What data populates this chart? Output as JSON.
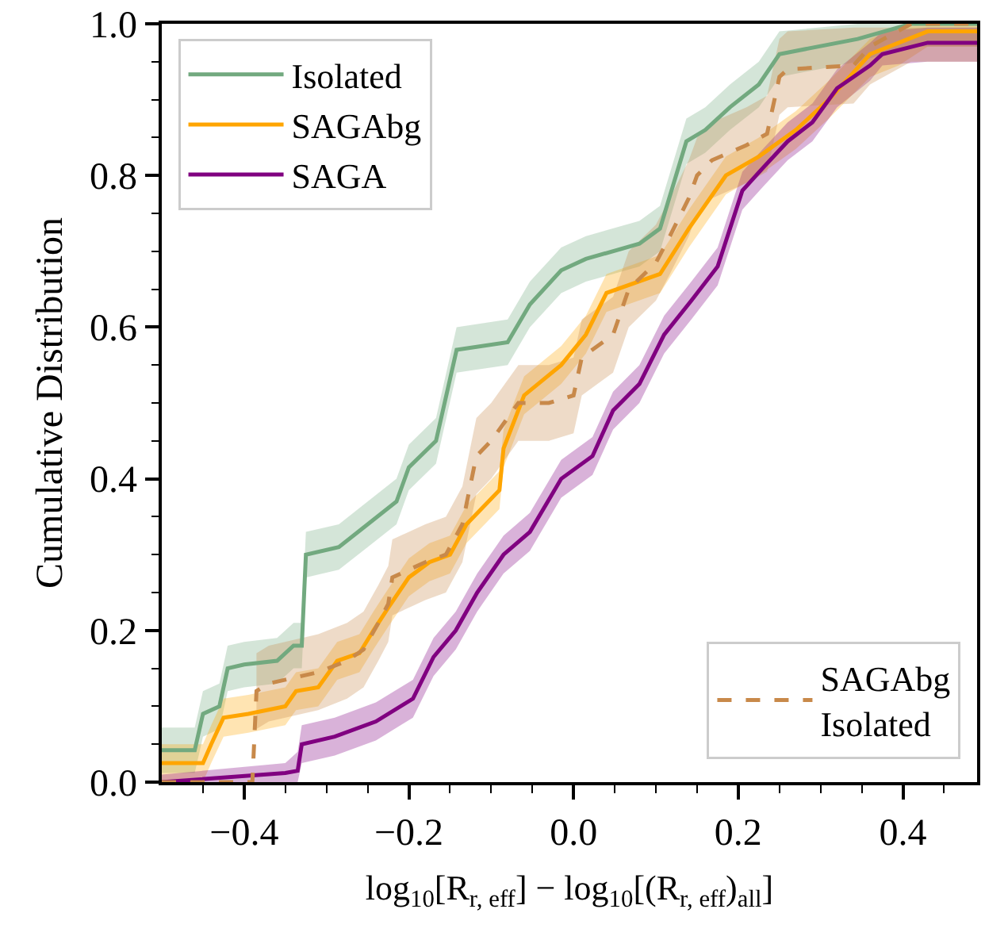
{
  "chart_data": {
    "type": "line",
    "xlabel": "log$_{10}$[R$_{r, eff}$] − log$_{10}$[(R$_{r, eff}$)$_{all}$]",
    "ylabel": "Cumulative Distribution",
    "xlim": [
      -0.5,
      0.49
    ],
    "ylim": [
      0,
      1
    ],
    "xticks": [
      {
        "value": -0.45,
        "label": null
      },
      {
        "value": -0.4,
        "label": "−0.4"
      },
      {
        "value": -0.35,
        "label": null
      },
      {
        "value": -0.3,
        "label": null
      },
      {
        "value": -0.25,
        "label": null
      },
      {
        "value": -0.2,
        "label": "−0.2"
      },
      {
        "value": -0.15,
        "label": null
      },
      {
        "value": -0.1,
        "label": null
      },
      {
        "value": -0.05,
        "label": null
      },
      {
        "value": 0,
        "label": "0.0"
      },
      {
        "value": 0.05,
        "label": null
      },
      {
        "value": 0.1,
        "label": null
      },
      {
        "value": 0.15,
        "label": null
      },
      {
        "value": 0.2,
        "label": "0.2"
      },
      {
        "value": 0.25,
        "label": null
      },
      {
        "value": 0.3,
        "label": null
      },
      {
        "value": 0.35,
        "label": null
      },
      {
        "value": 0.4,
        "label": "0.4"
      },
      {
        "value": 0.45,
        "label": null
      }
    ],
    "yticks": [
      {
        "value": 0,
        "label": "0.0"
      },
      {
        "value": 0.05,
        "label": null
      },
      {
        "value": 0.1,
        "label": null
      },
      {
        "value": 0.15,
        "label": null
      },
      {
        "value": 0.2,
        "label": "0.2"
      },
      {
        "value": 0.25,
        "label": null
      },
      {
        "value": 0.3,
        "label": null
      },
      {
        "value": 0.35,
        "label": null
      },
      {
        "value": 0.4,
        "label": "0.4"
      },
      {
        "value": 0.45,
        "label": null
      },
      {
        "value": 0.5,
        "label": null
      },
      {
        "value": 0.55,
        "label": null
      },
      {
        "value": 0.6,
        "label": "0.6"
      },
      {
        "value": 0.65,
        "label": null
      },
      {
        "value": 0.7,
        "label": null
      },
      {
        "value": 0.75,
        "label": null
      },
      {
        "value": 0.8,
        "label": "0.8"
      },
      {
        "value": 0.85,
        "label": null
      },
      {
        "value": 0.9,
        "label": null
      },
      {
        "value": 0.95,
        "label": null
      },
      {
        "value": 1,
        "label": "1.0"
      }
    ],
    "legend": [
      "top left",
      "bottom right"
    ],
    "marker": "none",
    "series": [
      {
        "name": "Isolated",
        "color": "#72a97f",
        "line_style": "solid",
        "x": [
          -0.5,
          -0.46,
          -0.45,
          -0.43,
          -0.42,
          -0.4,
          -0.36,
          -0.34,
          -0.33,
          -0.325,
          -0.285,
          -0.25,
          -0.215,
          -0.2,
          -0.167,
          -0.142,
          -0.08,
          -0.053,
          -0.015,
          0.015,
          0.08,
          0.105,
          0.137,
          0.16,
          0.19,
          0.225,
          0.25,
          0.345,
          0.41,
          0.49
        ],
        "values": [
          0.042,
          0.042,
          0.09,
          0.1,
          0.15,
          0.155,
          0.16,
          0.18,
          0.18,
          0.3,
          0.31,
          0.34,
          0.37,
          0.415,
          0.45,
          0.57,
          0.58,
          0.63,
          0.675,
          0.69,
          0.71,
          0.73,
          0.845,
          0.86,
          0.89,
          0.92,
          0.96,
          0.98,
          1.0,
          1.0
        ],
        "lower": [
          0.012,
          0.012,
          0.06,
          0.07,
          0.12,
          0.125,
          0.13,
          0.15,
          0.15,
          0.27,
          0.28,
          0.31,
          0.34,
          0.385,
          0.42,
          0.54,
          0.55,
          0.6,
          0.645,
          0.66,
          0.68,
          0.7,
          0.815,
          0.83,
          0.86,
          0.89,
          0.93,
          0.95,
          0.97,
          0.97
        ],
        "upper": [
          0.072,
          0.072,
          0.12,
          0.13,
          0.18,
          0.185,
          0.19,
          0.21,
          0.21,
          0.33,
          0.34,
          0.37,
          0.4,
          0.445,
          0.48,
          0.6,
          0.61,
          0.66,
          0.705,
          0.72,
          0.74,
          0.76,
          0.875,
          0.89,
          0.92,
          0.95,
          0.99,
          1.0,
          1.0,
          1.0
        ]
      },
      {
        "name": "SAGAbg",
        "color": "#ffa500",
        "line_style": "solid",
        "x": [
          -0.5,
          -0.45,
          -0.44,
          -0.425,
          -0.395,
          -0.35,
          -0.337,
          -0.31,
          -0.287,
          -0.26,
          -0.243,
          -0.225,
          -0.2,
          -0.175,
          -0.15,
          -0.13,
          -0.09,
          -0.085,
          -0.06,
          -0.015,
          0.015,
          0.04,
          0.105,
          0.14,
          0.185,
          0.225,
          0.27,
          0.31,
          0.36,
          0.395,
          0.43,
          0.49
        ],
        "values": [
          0.025,
          0.025,
          0.05,
          0.085,
          0.09,
          0.1,
          0.12,
          0.125,
          0.16,
          0.17,
          0.2,
          0.23,
          0.27,
          0.29,
          0.3,
          0.34,
          0.385,
          0.44,
          0.51,
          0.55,
          0.59,
          0.645,
          0.67,
          0.73,
          0.8,
          0.825,
          0.86,
          0.9,
          0.96,
          0.975,
          0.99,
          0.99
        ],
        "lower": [
          0.0,
          0.0,
          0.025,
          0.06,
          0.065,
          0.075,
          0.095,
          0.1,
          0.135,
          0.145,
          0.175,
          0.205,
          0.245,
          0.265,
          0.275,
          0.315,
          0.36,
          0.415,
          0.485,
          0.525,
          0.565,
          0.62,
          0.645,
          0.705,
          0.775,
          0.8,
          0.835,
          0.875,
          0.93,
          0.945,
          0.97,
          0.97
        ],
        "upper": [
          0.05,
          0.05,
          0.075,
          0.11,
          0.115,
          0.125,
          0.145,
          0.15,
          0.185,
          0.195,
          0.225,
          0.255,
          0.295,
          0.315,
          0.325,
          0.365,
          0.41,
          0.465,
          0.535,
          0.575,
          0.615,
          0.67,
          0.695,
          0.755,
          0.825,
          0.85,
          0.885,
          0.925,
          0.98,
          0.995,
          1.0,
          1.0
        ]
      },
      {
        "name": "SAGA",
        "color": "#800080",
        "line_style": "solid",
        "x": [
          -0.5,
          -0.35,
          -0.335,
          -0.33,
          -0.29,
          -0.24,
          -0.195,
          -0.17,
          -0.143,
          -0.117,
          -0.085,
          -0.053,
          -0.015,
          0.023,
          0.048,
          0.08,
          0.11,
          0.143,
          0.175,
          0.205,
          0.23,
          0.26,
          0.29,
          0.32,
          0.36,
          0.375,
          0.43,
          0.49
        ],
        "values": [
          0.0,
          0.012,
          0.015,
          0.05,
          0.06,
          0.08,
          0.11,
          0.165,
          0.2,
          0.25,
          0.3,
          0.33,
          0.4,
          0.43,
          0.49,
          0.525,
          0.59,
          0.635,
          0.68,
          0.78,
          0.81,
          0.845,
          0.87,
          0.915,
          0.945,
          0.96,
          0.975,
          0.975
        ],
        "lower": [
          0,
          0,
          0,
          0.025,
          0.035,
          0.055,
          0.085,
          0.14,
          0.175,
          0.225,
          0.275,
          0.305,
          0.375,
          0.405,
          0.465,
          0.5,
          0.565,
          0.61,
          0.655,
          0.755,
          0.785,
          0.82,
          0.845,
          0.89,
          0.925,
          0.945,
          0.95,
          0.95
        ],
        "upper": [
          0.01,
          0.025,
          0.04,
          0.075,
          0.085,
          0.105,
          0.135,
          0.19,
          0.225,
          0.275,
          0.325,
          0.355,
          0.425,
          0.455,
          0.515,
          0.55,
          0.615,
          0.66,
          0.705,
          0.805,
          0.835,
          0.87,
          0.895,
          0.94,
          0.975,
          0.99,
          0.995,
          0.995
        ]
      },
      {
        "name": "SAGAbg\nIsolated",
        "color": "#c8894a",
        "line_style": "dashed",
        "x": [
          -0.5,
          -0.39,
          -0.385,
          -0.37,
          -0.31,
          -0.275,
          -0.255,
          -0.237,
          -0.225,
          -0.22,
          -0.18,
          -0.155,
          -0.135,
          -0.118,
          -0.1,
          -0.067,
          -0.03,
          0.0,
          0.01,
          0.048,
          0.067,
          0.1,
          0.117,
          0.14,
          0.15,
          0.168,
          0.21,
          0.235,
          0.25,
          0.26,
          0.34,
          0.36,
          0.41,
          0.49
        ],
        "values": [
          0.0,
          0.0,
          0.12,
          0.13,
          0.145,
          0.16,
          0.175,
          0.21,
          0.235,
          0.27,
          0.29,
          0.3,
          0.34,
          0.43,
          0.45,
          0.5,
          0.5,
          0.51,
          0.56,
          0.59,
          0.65,
          0.685,
          0.72,
          0.77,
          0.8,
          0.82,
          0.84,
          0.855,
          0.93,
          0.94,
          0.945,
          0.97,
          1.0,
          1.0
        ],
        "lower": [
          null,
          null,
          0.07,
          0.08,
          0.095,
          0.11,
          0.125,
          0.16,
          0.185,
          0.22,
          0.24,
          0.25,
          0.29,
          0.38,
          0.4,
          0.45,
          0.45,
          0.46,
          0.51,
          0.54,
          0.6,
          0.635,
          0.67,
          0.72,
          0.75,
          0.77,
          0.79,
          0.805,
          0.88,
          0.89,
          0.895,
          0.92,
          0.95,
          0.95
        ],
        "upper": [
          null,
          null,
          0.17,
          0.18,
          0.195,
          0.21,
          0.225,
          0.26,
          0.285,
          0.32,
          0.34,
          0.35,
          0.39,
          0.48,
          0.5,
          0.55,
          0.55,
          0.56,
          0.61,
          0.64,
          0.7,
          0.735,
          0.77,
          0.82,
          0.85,
          0.87,
          0.89,
          0.905,
          0.98,
          0.99,
          0.995,
          0.995,
          0.995,
          0.995
        ]
      }
    ]
  }
}
